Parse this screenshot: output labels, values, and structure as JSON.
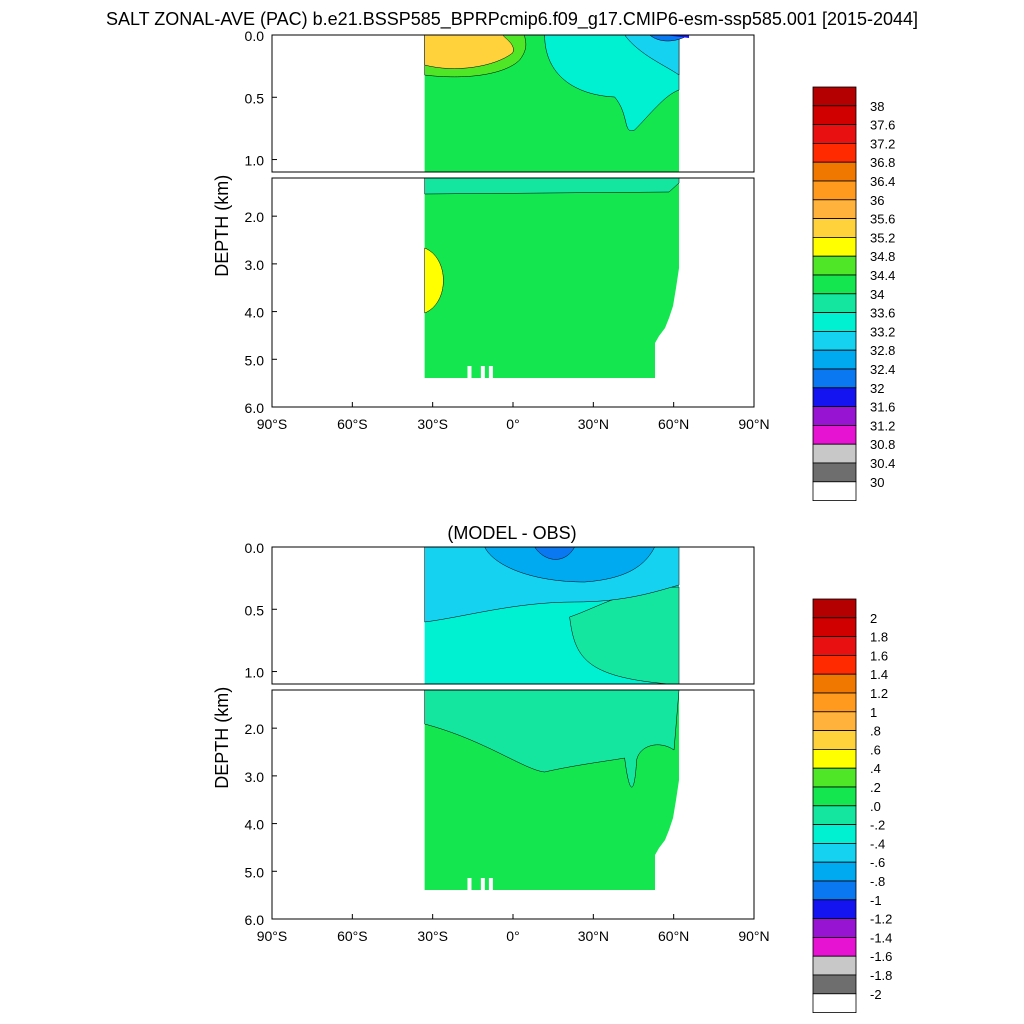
{
  "figure_title": "SALT ZONAL-AVE (PAC) b.e21.BSSP585_BPRPcmip6.f09_g17.CMIP6-esm-ssp585.001 [2015-2044]",
  "chart_data": [
    {
      "type": "heatmap",
      "title": "",
      "ylabel": "DEPTH (km)",
      "xlim": [
        -90,
        90
      ],
      "x_ticks": [
        "90°S",
        "60°S",
        "30°S",
        "0°",
        "30°N",
        "60°N",
        "90°N"
      ],
      "upper_ylim": [
        0,
        1.1
      ],
      "upper_y_ticks": [
        "0.0",
        "0.5",
        "1.0"
      ],
      "lower_ylim": [
        1.2,
        6.0
      ],
      "lower_y_ticks": [
        "2.0",
        "3.0",
        "4.0",
        "5.0",
        "6.0"
      ],
      "legend_placement": "right",
      "colorbar_labels": [
        "38",
        "37.6",
        "37.2",
        "36.8",
        "36.4",
        "36",
        "35.6",
        "35.2",
        "34.8",
        "34.4",
        "34",
        "33.6",
        "33.2",
        "32.8",
        "32.4",
        "32",
        "31.6",
        "31.2",
        "30.8",
        "30.4",
        "30"
      ],
      "colorbar_colors": [
        "#b40000",
        "#d00000",
        "#e81010",
        "#ff2a00",
        "#f07800",
        "#ff9a1e",
        "#ffb23c",
        "#ffd23c",
        "#ffff00",
        "#50e628",
        "#14e650",
        "#14e6a0",
        "#00f0d2",
        "#14d2f0",
        "#00aaf0",
        "#0a78f0",
        "#1414f0",
        "#9614d2",
        "#e614d2",
        "#c8c8c8",
        "#6e6e6e",
        "#ffffff"
      ],
      "regions": [
        {
          "name": "ocean_background",
          "value": "34.4-34.8",
          "color": "#14e650"
        },
        {
          "name": "subtropical_maximum",
          "value": "35.2-35.6",
          "color": "#ffd23c"
        },
        {
          "name": "north_fresh_surface",
          "value": "33.6-34.0",
          "color": "#00f0d2"
        },
        {
          "name": "arctic_fresh_core",
          "value": "32.0-32.4",
          "color": "#0a78f0"
        },
        {
          "name": "deep_salty_patch",
          "value": "34.8-35.2",
          "color": "#ffff00"
        }
      ]
    },
    {
      "type": "heatmap",
      "title": "(MODEL - OBS)",
      "ylabel": "DEPTH (km)",
      "xlim": [
        -90,
        90
      ],
      "x_ticks": [
        "90°S",
        "60°S",
        "30°S",
        "0°",
        "30°N",
        "60°N",
        "90°N"
      ],
      "upper_ylim": [
        0,
        1.1
      ],
      "upper_y_ticks": [
        "0.0",
        "0.5",
        "1.0"
      ],
      "lower_ylim": [
        1.2,
        6.0
      ],
      "lower_y_ticks": [
        "2.0",
        "3.0",
        "4.0",
        "5.0",
        "6.0"
      ],
      "legend_placement": "right",
      "colorbar_labels": [
        "2",
        "1.8",
        "1.6",
        "1.4",
        "1.2",
        "1",
        ".8",
        ".6",
        ".4",
        ".2",
        ".0",
        "-.2",
        "-.4",
        "-.6",
        "-.8",
        "-1",
        "-1.2",
        "-1.4",
        "-1.6",
        "-1.8",
        "-2"
      ],
      "colorbar_colors": [
        "#b40000",
        "#d00000",
        "#e81010",
        "#ff2a00",
        "#f07800",
        "#ff9a1e",
        "#ffb23c",
        "#ffd23c",
        "#ffff00",
        "#50e628",
        "#14e650",
        "#14e6a0",
        "#00f0d2",
        "#14d2f0",
        "#00aaf0",
        "#0a78f0",
        "#1414f0",
        "#9614d2",
        "#e614d2",
        "#c8c8c8",
        "#6e6e6e",
        "#ffffff"
      ],
      "regions": [
        {
          "name": "deep_positive_bias",
          "value": "0.0-0.2",
          "color": "#14e650"
        },
        {
          "name": "intermediate_bias",
          "value": "-0.2-0.0",
          "color": "#14e6a0"
        },
        {
          "name": "upper_fresh_bias",
          "value": "-0.4--0.2",
          "color": "#00f0d2"
        },
        {
          "name": "surface_fresh_bias",
          "value": "-0.6--0.4",
          "color": "#14d2f0"
        },
        {
          "name": "strong_surface_bias",
          "value": "-0.8--0.6",
          "color": "#00aaf0"
        }
      ]
    }
  ]
}
